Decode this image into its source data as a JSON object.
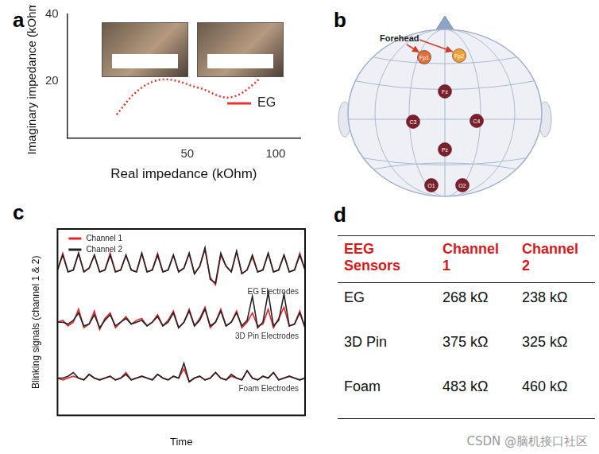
{
  "panel_labels": [
    "a",
    "b",
    "c",
    "d"
  ],
  "chart_data": [
    {
      "type": "line",
      "x_label": "Real impedance (kOhm)",
      "y_label": "Imaginary impedance (kOhm)",
      "xlim": [
        -18,
        114
      ],
      "ylim": [
        3,
        40
      ],
      "xticks": [
        50,
        100
      ],
      "yticks": [
        20,
        40
      ],
      "grid": false,
      "legend": "right",
      "x": [
        10,
        13,
        16,
        19,
        22,
        25,
        28,
        31,
        34,
        37,
        40,
        43,
        46,
        49,
        52,
        55,
        58,
        61,
        64,
        67,
        70,
        73,
        76,
        79,
        82,
        85,
        88,
        91
      ],
      "series": [
        {
          "name": "EG",
          "color": "#e8352c",
          "line_style": "dotted",
          "values": [
            10,
            12,
            14,
            15.8,
            17.2,
            18.4,
            19.3,
            20,
            20.4,
            20.6,
            20.5,
            20.2,
            19.8,
            19.3,
            18.7,
            18.2,
            17.8,
            17.2,
            16.4,
            15.7,
            15.2,
            15.1,
            15.3,
            15.9,
            16.8,
            18,
            19.3,
            20.8
          ]
        }
      ]
    },
    {
      "type": "line",
      "y_label": "Blinking signals (channel 1 & 2)",
      "x_label": "Time",
      "tick_labels": false,
      "grid": false,
      "legend": "upper left",
      "ylim": [
        0,
        100
      ],
      "groups": [
        {
          "label": "EG Electrodes",
          "series": [
            {
              "name": "Channel 1",
              "color": "#e0262a",
              "values": [
                78,
                87,
                77,
                78,
                87,
                77,
                79,
                86,
                77,
                78,
                87,
                77,
                78,
                86,
                78,
                77,
                87,
                77,
                78,
                87,
                77,
                78,
                86,
                77,
                79,
                87,
                76,
                80,
                89,
                74,
                70,
                86,
                80,
                77,
                88,
                76,
                78,
                85,
                77,
                78,
                87,
                77,
                78,
                86,
                77,
                78,
                87,
                78
              ]
            },
            {
              "name": "Channel 2",
              "color": "#222222",
              "values": [
                78,
                86,
                77,
                78,
                87,
                77,
                79,
                86,
                77,
                78,
                86,
                77,
                78,
                86,
                78,
                77,
                87,
                77,
                78,
                86,
                77,
                78,
                86,
                77,
                79,
                87,
                76,
                80,
                90,
                73,
                71,
                87,
                80,
                77,
                88,
                76,
                78,
                86,
                77,
                78,
                87,
                77,
                78,
                86,
                77,
                78,
                86,
                78
              ]
            }
          ]
        },
        {
          "label": "3D Pin Electrodes",
          "series": [
            {
              "name": "Channel 1",
              "color": "#e0262a",
              "values": [
                50,
                51,
                48,
                50,
                57,
                47,
                49,
                56,
                46,
                52,
                55,
                47,
                50,
                53,
                49,
                51,
                52,
                48,
                50,
                54,
                48,
                51,
                56,
                47,
                50,
                57,
                48,
                52,
                58,
                47,
                50,
                57,
                48,
                50,
                56,
                47,
                50,
                55,
                48,
                49,
                57,
                47,
                52,
                58,
                48,
                49,
                56,
                47
              ]
            },
            {
              "name": "Channel 2",
              "color": "#222222",
              "values": [
                50,
                50,
                49,
                51,
                55,
                48,
                49,
                54,
                47,
                51,
                54,
                48,
                50,
                52,
                49,
                50,
                51,
                48,
                50,
                53,
                48,
                50,
                55,
                47,
                50,
                56,
                48,
                51,
                57,
                48,
                50,
                56,
                48,
                50,
                55,
                48,
                51,
                64,
                47,
                50,
                66,
                48,
                51,
                65,
                48,
                49,
                55,
                47
              ]
            }
          ]
        },
        {
          "label": "Foam Electrodes",
          "series": [
            {
              "name": "Channel 1",
              "color": "#e0262a",
              "values": [
                20,
                19,
                20,
                21,
                20,
                19,
                22,
                20,
                19,
                20,
                21,
                19,
                20,
                23,
                19,
                20,
                21,
                20,
                19,
                22,
                20,
                19,
                21,
                20,
                25,
                18,
                20,
                21,
                19,
                20,
                23,
                20,
                19,
                21,
                20,
                19,
                24,
                20,
                19,
                21,
                20,
                23,
                19,
                20,
                21,
                20,
                19,
                20
              ]
            },
            {
              "name": "Channel 2",
              "color": "#222222",
              "values": [
                20,
                20,
                21,
                23,
                20,
                19,
                22,
                20,
                19,
                20,
                21,
                19,
                20,
                22,
                19,
                20,
                21,
                20,
                19,
                22,
                20,
                19,
                21,
                20,
                28,
                18,
                20,
                21,
                19,
                20,
                23,
                20,
                19,
                22,
                20,
                19,
                24,
                20,
                19,
                21,
                20,
                23,
                19,
                20,
                21,
                20,
                19,
                20
              ]
            }
          ]
        }
      ]
    }
  ],
  "diagram": {
    "annotation": "Forehead",
    "electrodes": [
      {
        "label": "Fp1",
        "color": "#e0703a"
      },
      {
        "label": "Fp2",
        "color": "#f0a030"
      },
      {
        "label": "Fz",
        "color": "#7a1f2b"
      },
      {
        "label": "C3",
        "color": "#7a1f2b"
      },
      {
        "label": "C4",
        "color": "#7a1f2b"
      },
      {
        "label": "Pz",
        "color": "#7a1f2b"
      },
      {
        "label": "O1",
        "color": "#7a1f2b"
      },
      {
        "label": "O2",
        "color": "#7a1f2b"
      }
    ]
  },
  "table": {
    "header": [
      "EEG Sensors",
      "Channel 1",
      "Channel 2"
    ],
    "rows": [
      [
        "EG",
        "268 kΩ",
        "238 kΩ"
      ],
      [
        "3D Pin",
        "375 kΩ",
        "325 kΩ"
      ],
      [
        "Foam",
        "483 kΩ",
        "460 kΩ"
      ]
    ]
  },
  "watermark": "CSDN @脑机接口社区"
}
